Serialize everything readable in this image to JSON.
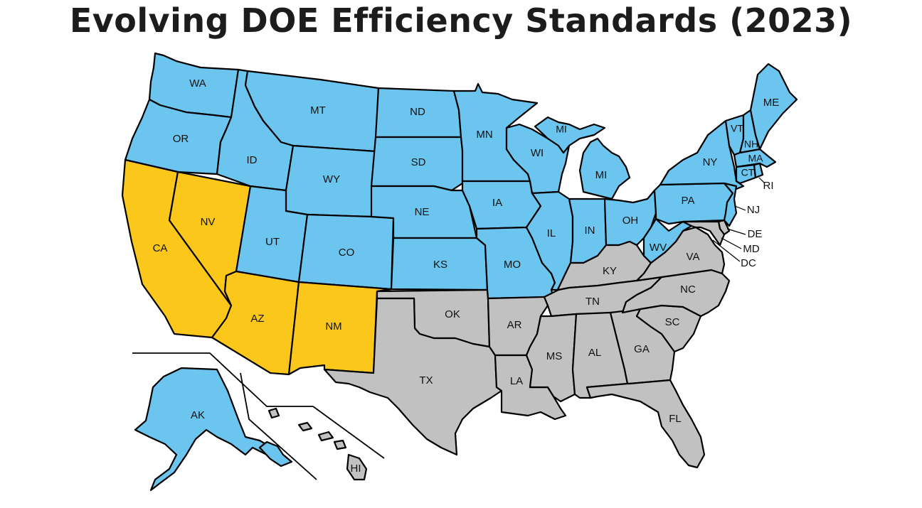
{
  "title": "Evolving DOE Efficiency Standards (2023)",
  "colors": {
    "blue": "#6cc5ef",
    "yellow": "#fcc71b",
    "gray": "#c1c1c1"
  },
  "states": [
    {
      "code": "WA",
      "color": "blue"
    },
    {
      "code": "OR",
      "color": "blue"
    },
    {
      "code": "CA",
      "color": "yellow"
    },
    {
      "code": "NV",
      "color": "yellow"
    },
    {
      "code": "ID",
      "color": "blue"
    },
    {
      "code": "MT",
      "color": "blue"
    },
    {
      "code": "WY",
      "color": "blue"
    },
    {
      "code": "UT",
      "color": "blue"
    },
    {
      "code": "AZ",
      "color": "yellow"
    },
    {
      "code": "CO",
      "color": "blue"
    },
    {
      "code": "NM",
      "color": "yellow"
    },
    {
      "code": "ND",
      "color": "blue"
    },
    {
      "code": "SD",
      "color": "blue"
    },
    {
      "code": "NE",
      "color": "blue"
    },
    {
      "code": "KS",
      "color": "blue"
    },
    {
      "code": "OK",
      "color": "gray"
    },
    {
      "code": "TX",
      "color": "gray"
    },
    {
      "code": "MN",
      "color": "blue"
    },
    {
      "code": "IA",
      "color": "blue"
    },
    {
      "code": "MO",
      "color": "blue"
    },
    {
      "code": "AR",
      "color": "gray"
    },
    {
      "code": "LA",
      "color": "gray"
    },
    {
      "code": "WI",
      "color": "blue"
    },
    {
      "code": "IL",
      "color": "blue"
    },
    {
      "code": "MI",
      "color": "blue"
    },
    {
      "code": "IN",
      "color": "blue"
    },
    {
      "code": "OH",
      "color": "blue"
    },
    {
      "code": "KY",
      "color": "gray"
    },
    {
      "code": "TN",
      "color": "gray"
    },
    {
      "code": "MS",
      "color": "gray"
    },
    {
      "code": "AL",
      "color": "gray"
    },
    {
      "code": "GA",
      "color": "gray"
    },
    {
      "code": "FL",
      "color": "gray"
    },
    {
      "code": "SC",
      "color": "gray"
    },
    {
      "code": "NC",
      "color": "gray"
    },
    {
      "code": "VA",
      "color": "gray"
    },
    {
      "code": "WV",
      "color": "blue"
    },
    {
      "code": "PA",
      "color": "blue"
    },
    {
      "code": "NY",
      "color": "blue"
    },
    {
      "code": "NJ",
      "color": "blue"
    },
    {
      "code": "DE",
      "color": "gray"
    },
    {
      "code": "MD",
      "color": "gray"
    },
    {
      "code": "DC",
      "color": "gray"
    },
    {
      "code": "VT",
      "color": "blue"
    },
    {
      "code": "NH",
      "color": "blue"
    },
    {
      "code": "ME",
      "color": "blue"
    },
    {
      "code": "MA",
      "color": "blue"
    },
    {
      "code": "CT",
      "color": "blue"
    },
    {
      "code": "RI",
      "color": "blue"
    },
    {
      "code": "AK",
      "color": "blue"
    },
    {
      "code": "HI",
      "color": "gray"
    }
  ],
  "labels": {
    "WA": "WA",
    "OR": "OR",
    "CA": "CA",
    "NV": "NV",
    "ID": "ID",
    "MT": "MT",
    "WY": "WY",
    "UT": "UT",
    "AZ": "AZ",
    "CO": "CO",
    "NM": "NM",
    "ND": "ND",
    "SD": "SD",
    "NE": "NE",
    "KS": "KS",
    "OK": "OK",
    "TX": "TX",
    "MN": "MN",
    "IA": "IA",
    "MO": "MO",
    "AR": "AR",
    "LA": "LA",
    "WI": "WI",
    "IL": "IL",
    "MI_UP": "MI",
    "MI": "MI",
    "IN": "IN",
    "OH": "OH",
    "KY": "KY",
    "TN": "TN",
    "MS": "MS",
    "AL": "AL",
    "GA": "GA",
    "FL": "FL",
    "SC": "SC",
    "NC": "NC",
    "VA": "VA",
    "WV": "WV",
    "PA": "PA",
    "NY": "NY",
    "NJ": "NJ",
    "DE": "DE",
    "MD": "MD",
    "DC": "DC",
    "VT": "VT",
    "NH": "NH",
    "ME": "ME",
    "MA": "MA",
    "CT": "CT",
    "RI": "RI",
    "AK": "AK",
    "HI": "HI"
  }
}
